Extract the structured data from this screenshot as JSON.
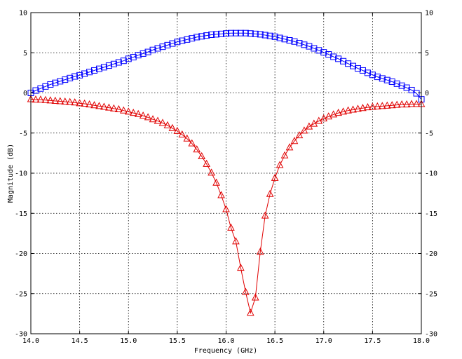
{
  "chart_data": {
    "type": "line",
    "xlabel": "Frequency (GHz)",
    "ylabel": "Magnitude (dB)",
    "xlim": [
      14.0,
      18.0
    ],
    "ylim": [
      -30,
      10
    ],
    "xticks": [
      14.0,
      14.5,
      15.0,
      15.5,
      16.0,
      16.5,
      17.0,
      17.5,
      18.0
    ],
    "xtick_labels": [
      "14.0",
      "14.5",
      "15.0",
      "15.5",
      "16.0",
      "16.5",
      "17.0",
      "17.5",
      "18.0"
    ],
    "yticks": [
      10,
      5,
      0,
      -5,
      -10,
      -15,
      -20,
      -25,
      -30
    ],
    "ytick_labels": [
      "10",
      "5",
      "0",
      "-5",
      "-10",
      "-15",
      "-20",
      "-25",
      "-30"
    ],
    "grid": true,
    "right_axis_labels": true,
    "series": [
      {
        "color": "#0000ff",
        "marker": "square",
        "x": [
          14.0,
          14.05,
          14.1,
          14.15,
          14.2,
          14.25,
          14.3,
          14.35,
          14.4,
          14.45,
          14.5,
          14.55,
          14.6,
          14.65,
          14.7,
          14.75,
          14.8,
          14.85,
          14.9,
          14.95,
          15.0,
          15.05,
          15.1,
          15.15,
          15.2,
          15.25,
          15.3,
          15.35,
          15.4,
          15.45,
          15.5,
          15.55,
          15.6,
          15.65,
          15.7,
          15.75,
          15.8,
          15.85,
          15.9,
          15.95,
          16.0,
          16.05,
          16.1,
          16.15,
          16.2,
          16.25,
          16.3,
          16.35,
          16.4,
          16.45,
          16.5,
          16.55,
          16.6,
          16.65,
          16.7,
          16.75,
          16.8,
          16.85,
          16.9,
          16.95,
          17.0,
          17.05,
          17.1,
          17.15,
          17.2,
          17.25,
          17.3,
          17.35,
          17.4,
          17.45,
          17.5,
          17.55,
          17.6,
          17.65,
          17.7,
          17.75,
          17.8,
          17.85,
          17.9,
          17.95,
          18.0
        ],
        "y": [
          0.0,
          0.3,
          0.55,
          0.8,
          1.05,
          1.25,
          1.45,
          1.65,
          1.85,
          2.05,
          2.2,
          2.4,
          2.6,
          2.8,
          3.0,
          3.2,
          3.4,
          3.6,
          3.8,
          4.0,
          4.25,
          4.45,
          4.7,
          4.9,
          5.1,
          5.35,
          5.55,
          5.75,
          5.95,
          6.15,
          6.35,
          6.5,
          6.65,
          6.8,
          6.95,
          7.05,
          7.15,
          7.25,
          7.3,
          7.35,
          7.4,
          7.45,
          7.45,
          7.45,
          7.45,
          7.4,
          7.35,
          7.3,
          7.2,
          7.1,
          7.0,
          6.85,
          6.7,
          6.55,
          6.4,
          6.2,
          6.0,
          5.8,
          5.55,
          5.3,
          5.05,
          4.8,
          4.5,
          4.25,
          3.95,
          3.65,
          3.35,
          3.05,
          2.8,
          2.5,
          2.25,
          2.0,
          1.8,
          1.6,
          1.4,
          1.15,
          0.9,
          0.65,
          0.35,
          -0.05,
          -0.8
        ]
      },
      {
        "color": "#e00000",
        "marker": "triangle",
        "x": [
          14.0,
          14.05,
          14.1,
          14.15,
          14.2,
          14.25,
          14.3,
          14.35,
          14.4,
          14.45,
          14.5,
          14.55,
          14.6,
          14.65,
          14.7,
          14.75,
          14.8,
          14.85,
          14.9,
          14.95,
          15.0,
          15.05,
          15.1,
          15.15,
          15.2,
          15.25,
          15.3,
          15.35,
          15.4,
          15.45,
          15.5,
          15.55,
          15.6,
          15.65,
          15.7,
          15.75,
          15.8,
          15.85,
          15.9,
          15.95,
          16.0,
          16.05,
          16.1,
          16.15,
          16.2,
          16.25,
          16.3,
          16.35,
          16.4,
          16.45,
          16.5,
          16.55,
          16.6,
          16.65,
          16.7,
          16.75,
          16.8,
          16.85,
          16.9,
          16.95,
          17.0,
          17.05,
          17.1,
          17.15,
          17.2,
          17.25,
          17.3,
          17.35,
          17.4,
          17.45,
          17.5,
          17.55,
          17.6,
          17.65,
          17.7,
          17.75,
          17.8,
          17.85,
          17.9,
          17.95,
          18.0
        ],
        "y": [
          -0.8,
          -0.85,
          -0.85,
          -0.9,
          -0.95,
          -1.0,
          -1.05,
          -1.1,
          -1.15,
          -1.2,
          -1.3,
          -1.35,
          -1.45,
          -1.55,
          -1.65,
          -1.75,
          -1.85,
          -1.95,
          -2.05,
          -2.2,
          -2.35,
          -2.5,
          -2.65,
          -2.85,
          -3.05,
          -3.3,
          -3.5,
          -3.75,
          -4.05,
          -4.4,
          -4.75,
          -5.2,
          -5.7,
          -6.3,
          -7.05,
          -7.9,
          -8.85,
          -9.95,
          -11.2,
          -12.75,
          -14.5,
          -16.8,
          -18.5,
          -21.8,
          -24.8,
          -27.4,
          -25.5,
          -19.8,
          -15.3,
          -12.6,
          -10.6,
          -9.0,
          -7.8,
          -6.8,
          -6.0,
          -5.3,
          -4.7,
          -4.2,
          -3.85,
          -3.5,
          -3.2,
          -2.95,
          -2.7,
          -2.5,
          -2.35,
          -2.2,
          -2.1,
          -2.0,
          -1.9,
          -1.8,
          -1.75,
          -1.7,
          -1.65,
          -1.6,
          -1.55,
          -1.5,
          -1.45,
          -1.45,
          -1.4,
          -1.4,
          -1.4
        ]
      }
    ]
  }
}
